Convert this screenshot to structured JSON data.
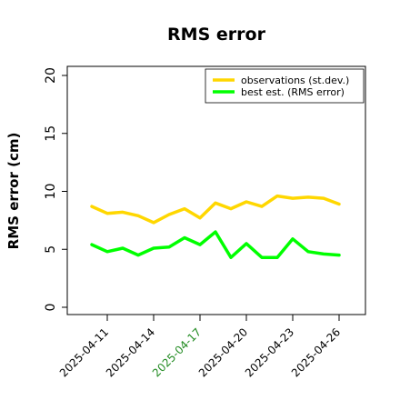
{
  "chart_data": {
    "type": "line",
    "title": "RMS error",
    "xlabel": "",
    "ylabel": "RMS error (cm)",
    "ylim": [
      0,
      20
    ],
    "yticks": [
      0,
      5,
      10,
      15,
      20
    ],
    "grid": false,
    "legend_position": "top-right",
    "x": [
      "2025-04-10",
      "2025-04-11",
      "2025-04-12",
      "2025-04-13",
      "2025-04-14",
      "2025-04-15",
      "2025-04-16",
      "2025-04-17",
      "2025-04-18",
      "2025-04-19",
      "2025-04-20",
      "2025-04-21",
      "2025-04-22",
      "2025-04-23",
      "2025-04-24",
      "2025-04-25",
      "2025-04-26"
    ],
    "xticks": [
      {
        "label": "2025-04-11",
        "color": "#000000"
      },
      {
        "label": "2025-04-14",
        "color": "#000000"
      },
      {
        "label": "2025-04-17",
        "color": "#228b22"
      },
      {
        "label": "2025-04-20",
        "color": "#000000"
      },
      {
        "label": "2025-04-23",
        "color": "#000000"
      },
      {
        "label": "2025-04-26",
        "color": "#000000"
      }
    ],
    "series": [
      {
        "name": "observations (st.dev.)",
        "color": "#ffd700",
        "values": [
          8.7,
          8.1,
          8.2,
          7.9,
          7.3,
          8.0,
          8.5,
          7.7,
          9.0,
          8.5,
          9.1,
          8.7,
          9.6,
          9.4,
          9.5,
          9.4,
          8.9
        ]
      },
      {
        "name": "best est. (RMS error)",
        "color": "#00ff00",
        "values": [
          5.4,
          4.8,
          5.1,
          4.5,
          5.1,
          5.2,
          6.0,
          5.4,
          6.5,
          4.3,
          5.5,
          4.3,
          4.3,
          5.9,
          4.8,
          4.6,
          4.5
        ]
      }
    ]
  }
}
